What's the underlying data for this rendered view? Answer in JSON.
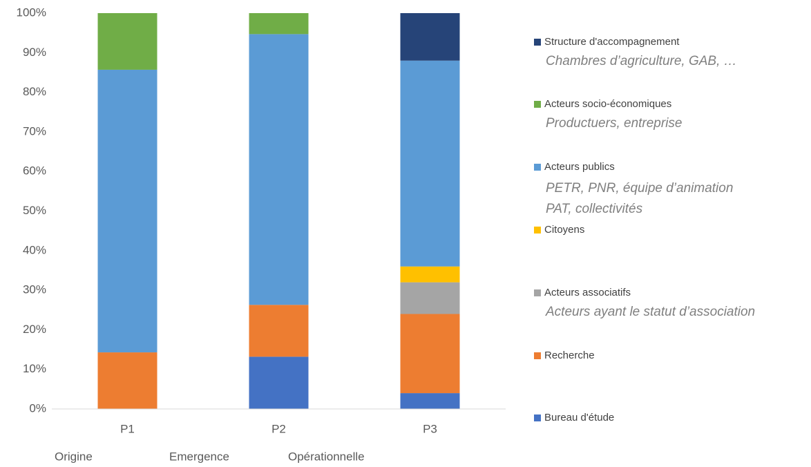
{
  "chart_data": {
    "type": "stacked_bar",
    "categories": [
      "P1",
      "P2",
      "P3"
    ],
    "annotations": [
      "Origine",
      "Emergence",
      "Opérationnelle"
    ],
    "series": [
      {
        "name": "Bureau d'étude",
        "color": "#4472c4",
        "values": [
          0,
          13.2,
          4
        ]
      },
      {
        "name": "Recherche",
        "color": "#ed7d31",
        "values": [
          14.3,
          13.1,
          20
        ]
      },
      {
        "name": "Acteurs associatifs",
        "color": "#a5a5a5",
        "values": [
          0,
          0,
          8
        ],
        "description": [
          "Acteurs ayant le statut d’association"
        ]
      },
      {
        "name": "Citoyens",
        "color": "#ffc000",
        "values": [
          0,
          0,
          4
        ]
      },
      {
        "name": "Acteurs publics",
        "color": "#5b9bd5",
        "values": [
          71.4,
          68.4,
          52
        ],
        "description": [
          "PETR, PNR, équipe d’animation",
          "PAT, collectivités"
        ]
      },
      {
        "name": "Acteurs socio-économiques",
        "color": "#70ad47",
        "values": [
          14.3,
          5.3,
          0
        ],
        "description": [
          "Productuers, entreprise"
        ]
      },
      {
        "name": "Structure d'accompagnement",
        "color": "#264478",
        "values": [
          0,
          0,
          12
        ],
        "description": [
          "Chambres d’agriculture, GAB, …"
        ]
      }
    ],
    "ylim": [
      0,
      100
    ],
    "yticks": [
      {
        "value": 0,
        "label": "0%"
      },
      {
        "value": 10,
        "label": "10%"
      },
      {
        "value": 20,
        "label": "20%"
      },
      {
        "value": 30,
        "label": "30%"
      },
      {
        "value": 40,
        "label": "40%"
      },
      {
        "value": 50,
        "label": "50%"
      },
      {
        "value": 60,
        "label": "60%"
      },
      {
        "value": 70,
        "label": "70%"
      },
      {
        "value": 80,
        "label": "80%"
      },
      {
        "value": 90,
        "label": "90%"
      },
      {
        "value": 100,
        "label": "100%"
      }
    ],
    "grid": false
  }
}
